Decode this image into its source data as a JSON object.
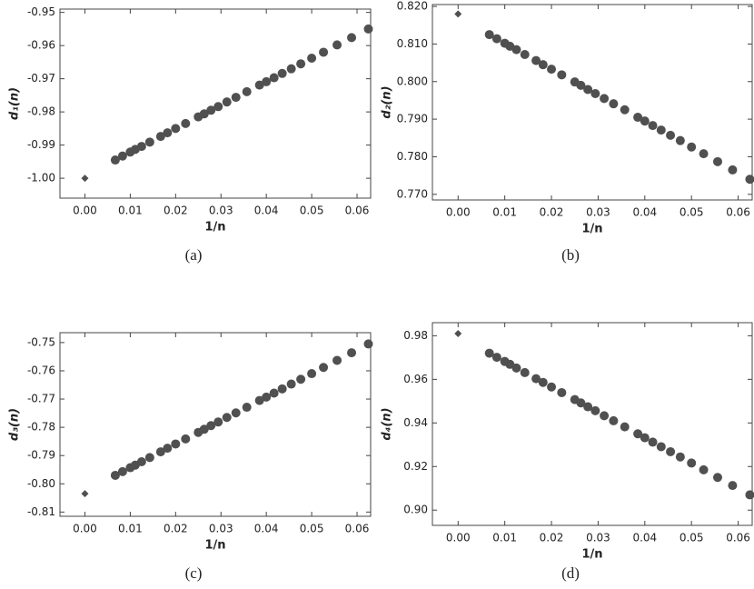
{
  "chart_data": [
    {
      "type": "scatter",
      "caption": "(a)",
      "xlabel": "1/n",
      "ylabel": "d₁(n)",
      "xlim": [
        -0.0055,
        0.063
      ],
      "xticks": [
        {
          "value": 0,
          "label": "0.00"
        },
        0.01,
        0.02,
        0.03,
        0.04,
        0.05,
        0.06
      ],
      "ylim": [
        -1.006,
        -0.949
      ],
      "yticks": [
        {
          "value": -1,
          "label": "-1.00"
        },
        -0.99,
        -0.98,
        -0.97,
        -0.96,
        -0.95
      ],
      "series": [
        {
          "marker": "circle",
          "color": "#505050",
          "x": [
            0.0625,
            0.0588,
            0.0556,
            0.0526,
            0.05,
            0.0476,
            0.0455,
            0.0435,
            0.0417,
            0.04,
            0.0385,
            0.0357,
            0.0333,
            0.0313,
            0.0294,
            0.0278,
            0.0263,
            0.025,
            0.0222,
            0.02,
            0.0182,
            0.0167,
            0.0143,
            0.0125,
            0.0111,
            0.01,
            0.0083,
            0.0067
          ],
          "values": [
            -0.955,
            -0.9576,
            -0.9598,
            -0.962,
            -0.9638,
            -0.9655,
            -0.967,
            -0.9684,
            -0.9697,
            -0.9709,
            -0.9719,
            -0.9739,
            -0.9756,
            -0.977,
            -0.9784,
            -0.9795,
            -0.9806,
            -0.9815,
            -0.9835,
            -0.985,
            -0.9863,
            -0.9874,
            -0.9891,
            -0.9904,
            -0.9913,
            -0.9921,
            -0.9933,
            -0.9945
          ]
        },
        {
          "marker": "diamond",
          "color": "#505050",
          "x": [
            0
          ],
          "values": [
            -1.0
          ]
        }
      ]
    },
    {
      "type": "scatter",
      "caption": "(b)",
      "xlabel": "1/n",
      "ylabel": "d₂(n)",
      "xlim": [
        -0.0055,
        0.063
      ],
      "xticks": [
        {
          "value": 0,
          "label": "0.00"
        },
        0.01,
        0.02,
        0.03,
        0.04,
        0.05,
        0.06
      ],
      "ylim": [
        0.7685,
        0.8205
      ],
      "yticks": [
        {
          "value": 0.77,
          "label": "0.770"
        },
        {
          "value": 0.78,
          "label": "0.780"
        },
        {
          "value": 0.79,
          "label": "0.790"
        },
        {
          "value": 0.8,
          "label": "0.800"
        },
        {
          "value": 0.81,
          "label": "0.810"
        },
        {
          "value": 0.82,
          "label": "0.820"
        }
      ],
      "series": [
        {
          "marker": "circle",
          "color": "#505050",
          "x": [
            0.0625,
            0.0588,
            0.0556,
            0.0526,
            0.05,
            0.0476,
            0.0455,
            0.0435,
            0.0417,
            0.04,
            0.0385,
            0.0357,
            0.0333,
            0.0313,
            0.0294,
            0.0278,
            0.0263,
            0.025,
            0.0222,
            0.02,
            0.0182,
            0.0167,
            0.0143,
            0.0125,
            0.0111,
            0.01,
            0.0083,
            0.0067
          ],
          "values": [
            0.774,
            0.7765,
            0.7787,
            0.7808,
            0.7826,
            0.7843,
            0.7857,
            0.7871,
            0.7883,
            0.7895,
            0.7905,
            0.7925,
            0.7941,
            0.7955,
            0.7968,
            0.7979,
            0.799,
            0.7999,
            0.8018,
            0.8033,
            0.8045,
            0.8056,
            0.8072,
            0.8085,
            0.8094,
            0.8102,
            0.8114,
            0.8125
          ]
        },
        {
          "marker": "diamond",
          "color": "#505050",
          "x": [
            0
          ],
          "values": [
            0.818
          ]
        }
      ]
    },
    {
      "type": "scatter",
      "caption": "(c)",
      "xlabel": "1/n",
      "ylabel": "d₃(n)",
      "xlim": [
        -0.0055,
        0.063
      ],
      "xticks": [
        {
          "value": 0,
          "label": "0.00"
        },
        0.01,
        0.02,
        0.03,
        0.04,
        0.05,
        0.06
      ],
      "ylim": [
        -0.8115,
        -0.7465
      ],
      "yticks": [
        -0.81,
        {
          "value": -0.8,
          "label": "-0.80"
        },
        -0.79,
        -0.78,
        -0.77,
        -0.76,
        -0.75
      ],
      "series": [
        {
          "marker": "circle",
          "color": "#505050",
          "x": [
            0.0625,
            0.0588,
            0.0556,
            0.0526,
            0.05,
            0.0476,
            0.0455,
            0.0435,
            0.0417,
            0.04,
            0.0385,
            0.0357,
            0.0333,
            0.0313,
            0.0294,
            0.0278,
            0.0263,
            0.025,
            0.0222,
            0.02,
            0.0182,
            0.0167,
            0.0143,
            0.0125,
            0.0111,
            0.01,
            0.0083,
            0.0067
          ],
          "values": [
            -0.7505,
            -0.7536,
            -0.7563,
            -0.7588,
            -0.761,
            -0.763,
            -0.7647,
            -0.7664,
            -0.7679,
            -0.7693,
            -0.7705,
            -0.7729,
            -0.7749,
            -0.7765,
            -0.7781,
            -0.7794,
            -0.7807,
            -0.7818,
            -0.7841,
            -0.7859,
            -0.7874,
            -0.7887,
            -0.7907,
            -0.7922,
            -0.7934,
            -0.7943,
            -0.7957,
            -0.797
          ]
        },
        {
          "marker": "diamond",
          "color": "#505050",
          "x": [
            0
          ],
          "values": [
            -0.8035
          ]
        }
      ]
    },
    {
      "type": "scatter",
      "caption": "(d)",
      "xlabel": "1/n",
      "ylabel": "d₄(n)",
      "xlim": [
        -0.0055,
        0.063
      ],
      "xticks": [
        {
          "value": 0,
          "label": "0.00"
        },
        0.01,
        0.02,
        0.03,
        0.04,
        0.05,
        0.06
      ],
      "ylim": [
        0.893,
        0.986
      ],
      "yticks": [
        {
          "value": 0.9,
          "label": "0.90"
        },
        0.92,
        0.94,
        0.96,
        0.98
      ],
      "series": [
        {
          "marker": "circle",
          "color": "#505050",
          "x": [
            0.0625,
            0.0588,
            0.0556,
            0.0526,
            0.05,
            0.0476,
            0.0455,
            0.0435,
            0.0417,
            0.04,
            0.0385,
            0.0357,
            0.0333,
            0.0313,
            0.0294,
            0.0278,
            0.0263,
            0.025,
            0.0222,
            0.02,
            0.0182,
            0.0167,
            0.0143,
            0.0125,
            0.0111,
            0.01,
            0.0083,
            0.0067
          ],
          "values": [
            0.907,
            0.9113,
            0.915,
            0.9185,
            0.9216,
            0.9244,
            0.9268,
            0.9291,
            0.9312,
            0.9332,
            0.935,
            0.9382,
            0.941,
            0.9433,
            0.9456,
            0.9474,
            0.9492,
            0.9507,
            0.9539,
            0.9565,
            0.9586,
            0.9603,
            0.9631,
            0.9652,
            0.9669,
            0.9682,
            0.9701,
            0.972
          ]
        },
        {
          "marker": "diamond",
          "color": "#505050",
          "x": [
            0
          ],
          "values": [
            0.981
          ]
        }
      ]
    }
  ]
}
